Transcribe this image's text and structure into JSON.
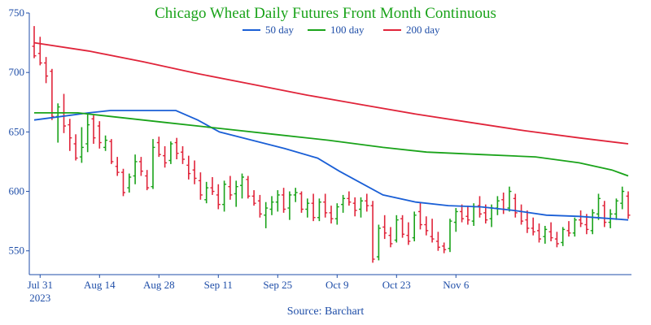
{
  "chart_data": {
    "type": "ohlc",
    "title": "Chicago Wheat Daily Futures Front Month Continuous",
    "source": "Source: Barchart",
    "xlabel": "",
    "ylabel": "",
    "ylim": [
      530,
      750
    ],
    "y_ticks": [
      550,
      600,
      650,
      700,
      750
    ],
    "x_ticks": [
      {
        "label": "Jul 31",
        "sub": "2023",
        "index": 1
      },
      {
        "label": "Aug 14",
        "sub": "",
        "index": 11
      },
      {
        "label": "Aug 28",
        "sub": "",
        "index": 21
      },
      {
        "label": "Sep 11",
        "sub": "",
        "index": 31
      },
      {
        "label": "Sep 25",
        "sub": "",
        "index": 41
      },
      {
        "label": "Oct 9",
        "sub": "",
        "index": 51
      },
      {
        "label": "Oct 23",
        "sub": "",
        "index": 61
      },
      {
        "label": "Nov 6",
        "sub": "",
        "index": 71
      }
    ],
    "legend": {
      "placement": "top",
      "entries": [
        {
          "name": "50 day",
          "color": "#1a5fd6"
        },
        {
          "name": "100 day",
          "color": "#1aa31a"
        },
        {
          "name": "200 day",
          "color": "#e0243a"
        }
      ]
    },
    "colors": {
      "up": "#1aa31a",
      "down": "#e0243a",
      "axis": "#1f4ea8"
    },
    "bars": [
      [
        722,
        739,
        712,
        714
      ],
      [
        716,
        730,
        706,
        708
      ],
      [
        708,
        713,
        691,
        697
      ],
      [
        701,
        703,
        660,
        663
      ],
      [
        663,
        674,
        641,
        671
      ],
      [
        666,
        682,
        649,
        655
      ],
      [
        656,
        661,
        634,
        645
      ],
      [
        640,
        648,
        626,
        628
      ],
      [
        629,
        654,
        624,
        637
      ],
      [
        640,
        665,
        633,
        656
      ],
      [
        661,
        664,
        640,
        645
      ],
      [
        655,
        659,
        636,
        641
      ],
      [
        637,
        647,
        634,
        643
      ],
      [
        642,
        644,
        623,
        625
      ],
      [
        621,
        629,
        613,
        616
      ],
      [
        616,
        619,
        596,
        599
      ],
      [
        603,
        615,
        599,
        612
      ],
      [
        613,
        631,
        606,
        625
      ],
      [
        625,
        629,
        613,
        617
      ],
      [
        613,
        618,
        601,
        603
      ],
      [
        604,
        644,
        602,
        637
      ],
      [
        641,
        646,
        629,
        631
      ],
      [
        630,
        638,
        620,
        624
      ],
      [
        626,
        642,
        623,
        640
      ],
      [
        641,
        645,
        627,
        632
      ],
      [
        633,
        638,
        623,
        627
      ],
      [
        622,
        630,
        610,
        615
      ],
      [
        618,
        626,
        606,
        611
      ],
      [
        609,
        616,
        593,
        597
      ],
      [
        593,
        608,
        590,
        603
      ],
      [
        603,
        612,
        597,
        600
      ],
      [
        597,
        606,
        585,
        589
      ],
      [
        589,
        609,
        583,
        606
      ],
      [
        604,
        613,
        593,
        597
      ],
      [
        598,
        609,
        587,
        604
      ],
      [
        605,
        615,
        594,
        612
      ],
      [
        610,
        613,
        594,
        596
      ],
      [
        596,
        601,
        588,
        590
      ],
      [
        592,
        597,
        578,
        581
      ],
      [
        580,
        591,
        569,
        586
      ],
      [
        585,
        596,
        580,
        591
      ],
      [
        591,
        601,
        583,
        597
      ],
      [
        597,
        603,
        582,
        585
      ],
      [
        586,
        600,
        576,
        597
      ],
      [
        597,
        603,
        591,
        599
      ],
      [
        598,
        600,
        582,
        585
      ],
      [
        585,
        594,
        578,
        590
      ],
      [
        590,
        598,
        575,
        578
      ],
      [
        578,
        594,
        575,
        591
      ],
      [
        591,
        598,
        578,
        582
      ],
      [
        582,
        588,
        573,
        577
      ],
      [
        577,
        590,
        572,
        587
      ],
      [
        589,
        597,
        582,
        594
      ],
      [
        594,
        600,
        588,
        591
      ],
      [
        590,
        595,
        579,
        584
      ],
      [
        585,
        595,
        578,
        592
      ],
      [
        592,
        598,
        583,
        588
      ],
      [
        588,
        592,
        540,
        543
      ],
      [
        545,
        572,
        542,
        569
      ],
      [
        570,
        580,
        560,
        565
      ],
      [
        563,
        570,
        553,
        556
      ],
      [
        559,
        580,
        557,
        576
      ],
      [
        577,
        580,
        561,
        564
      ],
      [
        563,
        574,
        555,
        558
      ],
      [
        561,
        583,
        558,
        580
      ],
      [
        583,
        591,
        568,
        572
      ],
      [
        572,
        579,
        563,
        567
      ],
      [
        562,
        577,
        557,
        560
      ],
      [
        558,
        566,
        550,
        553
      ],
      [
        554,
        557,
        548,
        551
      ],
      [
        552,
        577,
        549,
        575
      ],
      [
        574,
        586,
        566,
        583
      ],
      [
        583,
        589,
        574,
        577
      ],
      [
        579,
        588,
        572,
        576
      ],
      [
        575,
        590,
        571,
        587
      ],
      [
        588,
        596,
        578,
        581
      ],
      [
        582,
        589,
        573,
        576
      ],
      [
        577,
        589,
        570,
        586
      ],
      [
        586,
        596,
        580,
        592
      ],
      [
        593,
        599,
        581,
        585
      ],
      [
        586,
        604,
        583,
        600
      ],
      [
        594,
        598,
        578,
        582
      ],
      [
        583,
        589,
        572,
        575
      ],
      [
        576,
        584,
        565,
        569
      ],
      [
        569,
        578,
        563,
        566
      ],
      [
        567,
        573,
        557,
        560
      ],
      [
        562,
        571,
        556,
        568
      ],
      [
        566,
        574,
        558,
        561
      ],
      [
        560,
        566,
        553,
        556
      ],
      [
        557,
        570,
        554,
        568
      ],
      [
        567,
        575,
        562,
        565
      ],
      [
        565,
        578,
        562,
        576
      ],
      [
        576,
        584,
        570,
        573
      ],
      [
        572,
        581,
        564,
        568
      ],
      [
        567,
        585,
        564,
        582
      ],
      [
        581,
        598,
        576,
        594
      ],
      [
        588,
        592,
        570,
        574
      ],
      [
        574,
        585,
        569,
        581
      ],
      [
        581,
        594,
        576,
        592
      ],
      [
        590,
        604,
        585,
        600
      ],
      [
        596,
        600,
        577,
        580
      ]
    ],
    "series": [
      {
        "name": "50 day",
        "color": "#1a5fd6",
        "points": [
          [
            0,
            660
          ],
          [
            5,
            663
          ],
          [
            10,
            666
          ],
          [
            14,
            668
          ],
          [
            20,
            668
          ],
          [
            26,
            668
          ],
          [
            30,
            660
          ],
          [
            34,
            650
          ],
          [
            40,
            643
          ],
          [
            46,
            636
          ],
          [
            52,
            628
          ],
          [
            56,
            617
          ],
          [
            60,
            607
          ],
          [
            64,
            597
          ],
          [
            70,
            591
          ],
          [
            76,
            588
          ],
          [
            82,
            587
          ],
          [
            88,
            584
          ],
          [
            94,
            580
          ],
          [
            100,
            579
          ],
          [
            106,
            577
          ],
          [
            109,
            576
          ]
        ]
      },
      {
        "name": "100 day",
        "color": "#1aa31a",
        "points": [
          [
            0,
            666
          ],
          [
            8,
            666
          ],
          [
            14,
            663
          ],
          [
            24,
            658
          ],
          [
            34,
            653
          ],
          [
            44,
            648
          ],
          [
            54,
            643
          ],
          [
            64,
            637
          ],
          [
            72,
            633
          ],
          [
            82,
            631
          ],
          [
            92,
            629
          ],
          [
            100,
            624
          ],
          [
            106,
            618
          ],
          [
            109,
            613
          ]
        ]
      },
      {
        "name": "200 day",
        "color": "#e0243a",
        "points": [
          [
            0,
            725
          ],
          [
            10,
            718
          ],
          [
            20,
            709
          ],
          [
            30,
            699
          ],
          [
            40,
            690
          ],
          [
            50,
            681
          ],
          [
            60,
            673
          ],
          [
            70,
            665
          ],
          [
            80,
            658
          ],
          [
            90,
            651
          ],
          [
            100,
            645
          ],
          [
            109,
            640
          ]
        ]
      }
    ]
  }
}
